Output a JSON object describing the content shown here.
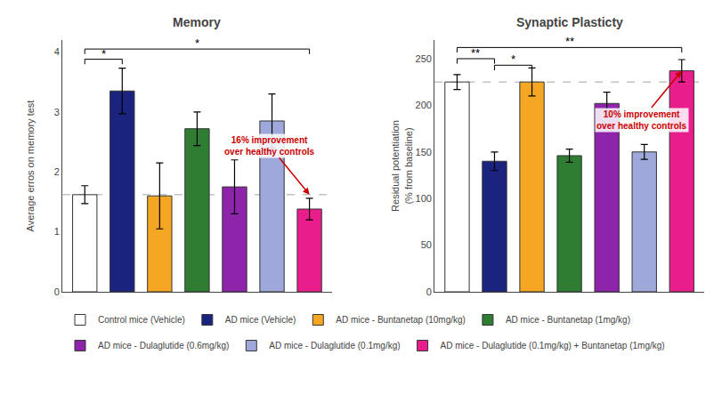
{
  "chart_data": [
    {
      "type": "bar",
      "title": "Memory",
      "ylabel": "Average erros on memory test",
      "categories": [
        "Control mice (Vehicle)",
        "AD mice (Vehicle)",
        "AD mice - Buntanetap (10mg/kg)",
        "AD mice - Buntanetap (1mg/kg)",
        "AD mice - Dulaglutide (0.6mg/kg)",
        "AD mice - Dulaglutide (0.1mg/kg)",
        "AD mice - Dulaglutide (0.1mg/kg) + Buntanetap (1mg/kg)"
      ],
      "values": [
        1.62,
        3.35,
        1.6,
        2.72,
        1.75,
        2.85,
        1.38
      ],
      "errors": [
        0.15,
        0.38,
        0.55,
        0.28,
        0.45,
        0.45,
        0.18
      ],
      "colors": [
        "#FFFFFF",
        "#1a237e",
        "#f5a623",
        "#2e7d32",
        "#8e24aa",
        "#9fa8da",
        "#e91e8c"
      ],
      "reference_line": 1.62,
      "significance": [
        {
          "text": "*",
          "between": [
            "Control mice (Vehicle)",
            "AD mice (Vehicle)"
          ],
          "y": 3.88
        },
        {
          "text": "*",
          "between": [
            "Control mice (Vehicle)",
            "AD mice - Dulaglutide (0.1mg/kg) + Buntanetap (1mg/kg)"
          ],
          "y": 4.05
        }
      ],
      "annotation": {
        "text": "16% improvement\nover healthy controls",
        "category": "AD mice - Dulaglutide (0.1mg/kg) + Buntanetap (1mg/kg)",
        "y": 1.62,
        "color": "#cc0000"
      },
      "ylim": [
        0,
        4.2
      ],
      "yticks": [
        0,
        1,
        2,
        3,
        4
      ],
      "tick_labels": "y",
      "grid": false,
      "legend": "bottom"
    },
    {
      "type": "bar",
      "title": "Synaptic Plasticty",
      "ylabel": "Residual potentiation\n(% from baseline)",
      "categories": [
        "Control mice (Vehicle)",
        "AD mice (Vehicle)",
        "AD mice - Buntanetap (10mg/kg)",
        "AD mice - Buntanetap (1mg/kg)",
        "AD mice - Dulaglutide (0.6mg/kg)",
        "AD mice - Dulaglutide (0.1mg/kg)",
        "AD mice - Dulaglutide (0.1mg/kg) + Buntanetap (1mg/kg)"
      ],
      "values": [
        225,
        140,
        225,
        146,
        202,
        150,
        237
      ],
      "errors": [
        8,
        10,
        15,
        7,
        12,
        8,
        12
      ],
      "colors": [
        "#FFFFFF",
        "#1a237e",
        "#f5a623",
        "#2e7d32",
        "#8e24aa",
        "#9fa8da",
        "#e91e8c"
      ],
      "reference_line": 225,
      "significance": [
        {
          "text": "**",
          "between": [
            "Control mice (Vehicle)",
            "AD mice (Vehicle)"
          ],
          "y": 250
        },
        {
          "text": "*",
          "between": [
            "AD mice (Vehicle)",
            "AD mice - Buntanetap (10mg/kg)"
          ],
          "y": 243
        },
        {
          "text": "**",
          "between": [
            "Control mice (Vehicle)",
            "AD mice - Dulaglutide (0.1mg/kg) + Buntanetap (1mg/kg)"
          ],
          "y": 262
        }
      ],
      "annotation": {
        "text": "10% improvement\nover healthy controls",
        "category": "AD mice - Dulaglutide (0.1mg/kg) + Buntanetap (1mg/kg)",
        "y": 237,
        "color": "#cc0000"
      },
      "ylim": [
        0,
        270
      ],
      "yticks": [
        0,
        50,
        100,
        150,
        200,
        250
      ],
      "tick_labels": "y",
      "grid": false
    }
  ]
}
